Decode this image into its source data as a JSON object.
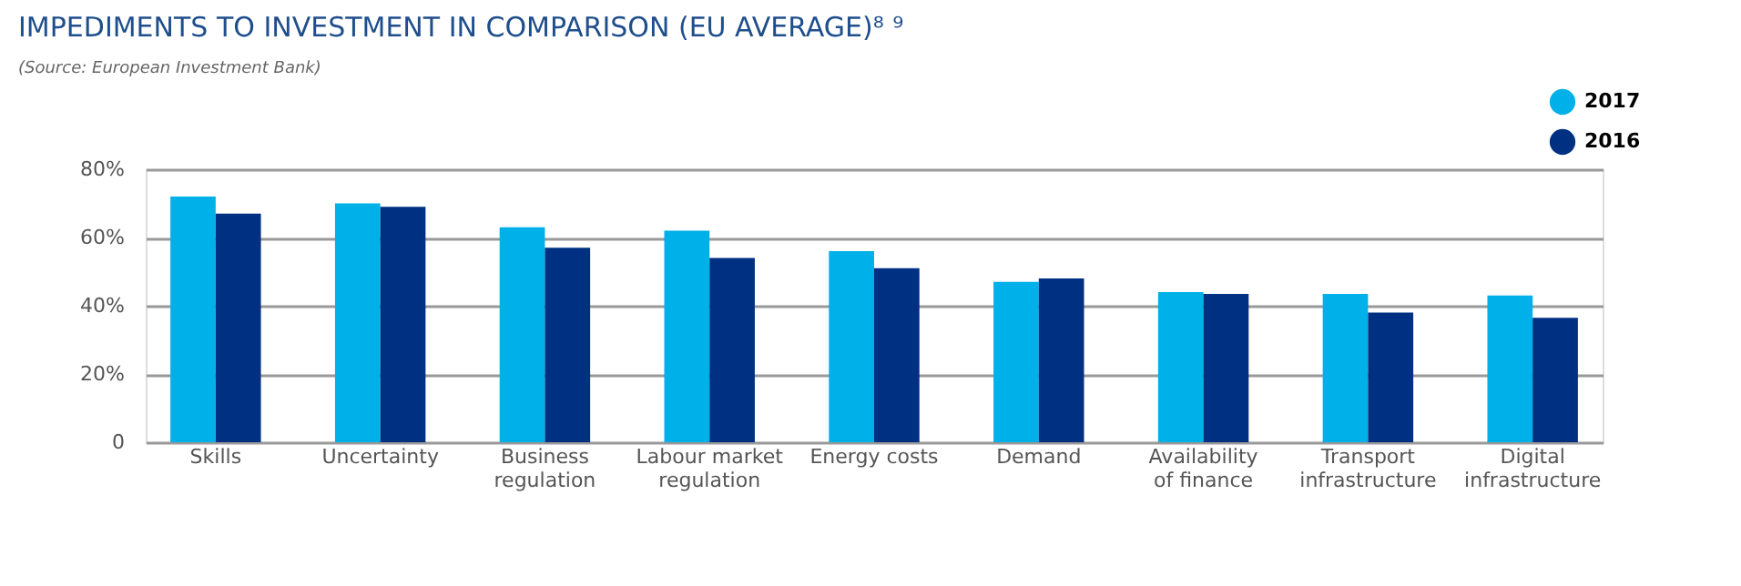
{
  "chart_data": {
    "type": "bar",
    "title": "IMPEDIMENTS TO INVESTMENT IN COMPARISON (EU AVERAGE)⁸ ⁹",
    "annotations": [
      "(Source: European Investment Bank)"
    ],
    "categories": [
      "Skills",
      "Uncertainty",
      "Business regulation",
      "Labour market regulation",
      "Energy costs",
      "Demand",
      "Availability of finance",
      "Transport infrastructure",
      "Digital infrastructure"
    ],
    "series": [
      {
        "name": "2017",
        "color": "#00b0e8",
        "values": [
          72,
          70,
          63,
          62,
          56,
          47,
          44,
          43.5,
          43
        ]
      },
      {
        "name": "2016",
        "color": "#003082",
        "values": [
          67,
          69,
          57,
          54,
          51,
          48,
          43.5,
          38,
          36.5
        ]
      }
    ],
    "ylim": [
      0,
      80
    ],
    "yticks": [
      {
        "value": 0,
        "label": "0"
      },
      {
        "value": 20,
        "label": "20%"
      },
      {
        "value": 40,
        "label": "40%"
      },
      {
        "value": 60,
        "label": "60%"
      },
      {
        "value": 80,
        "label": "80%"
      }
    ],
    "grid": "y",
    "legend": "top right"
  }
}
